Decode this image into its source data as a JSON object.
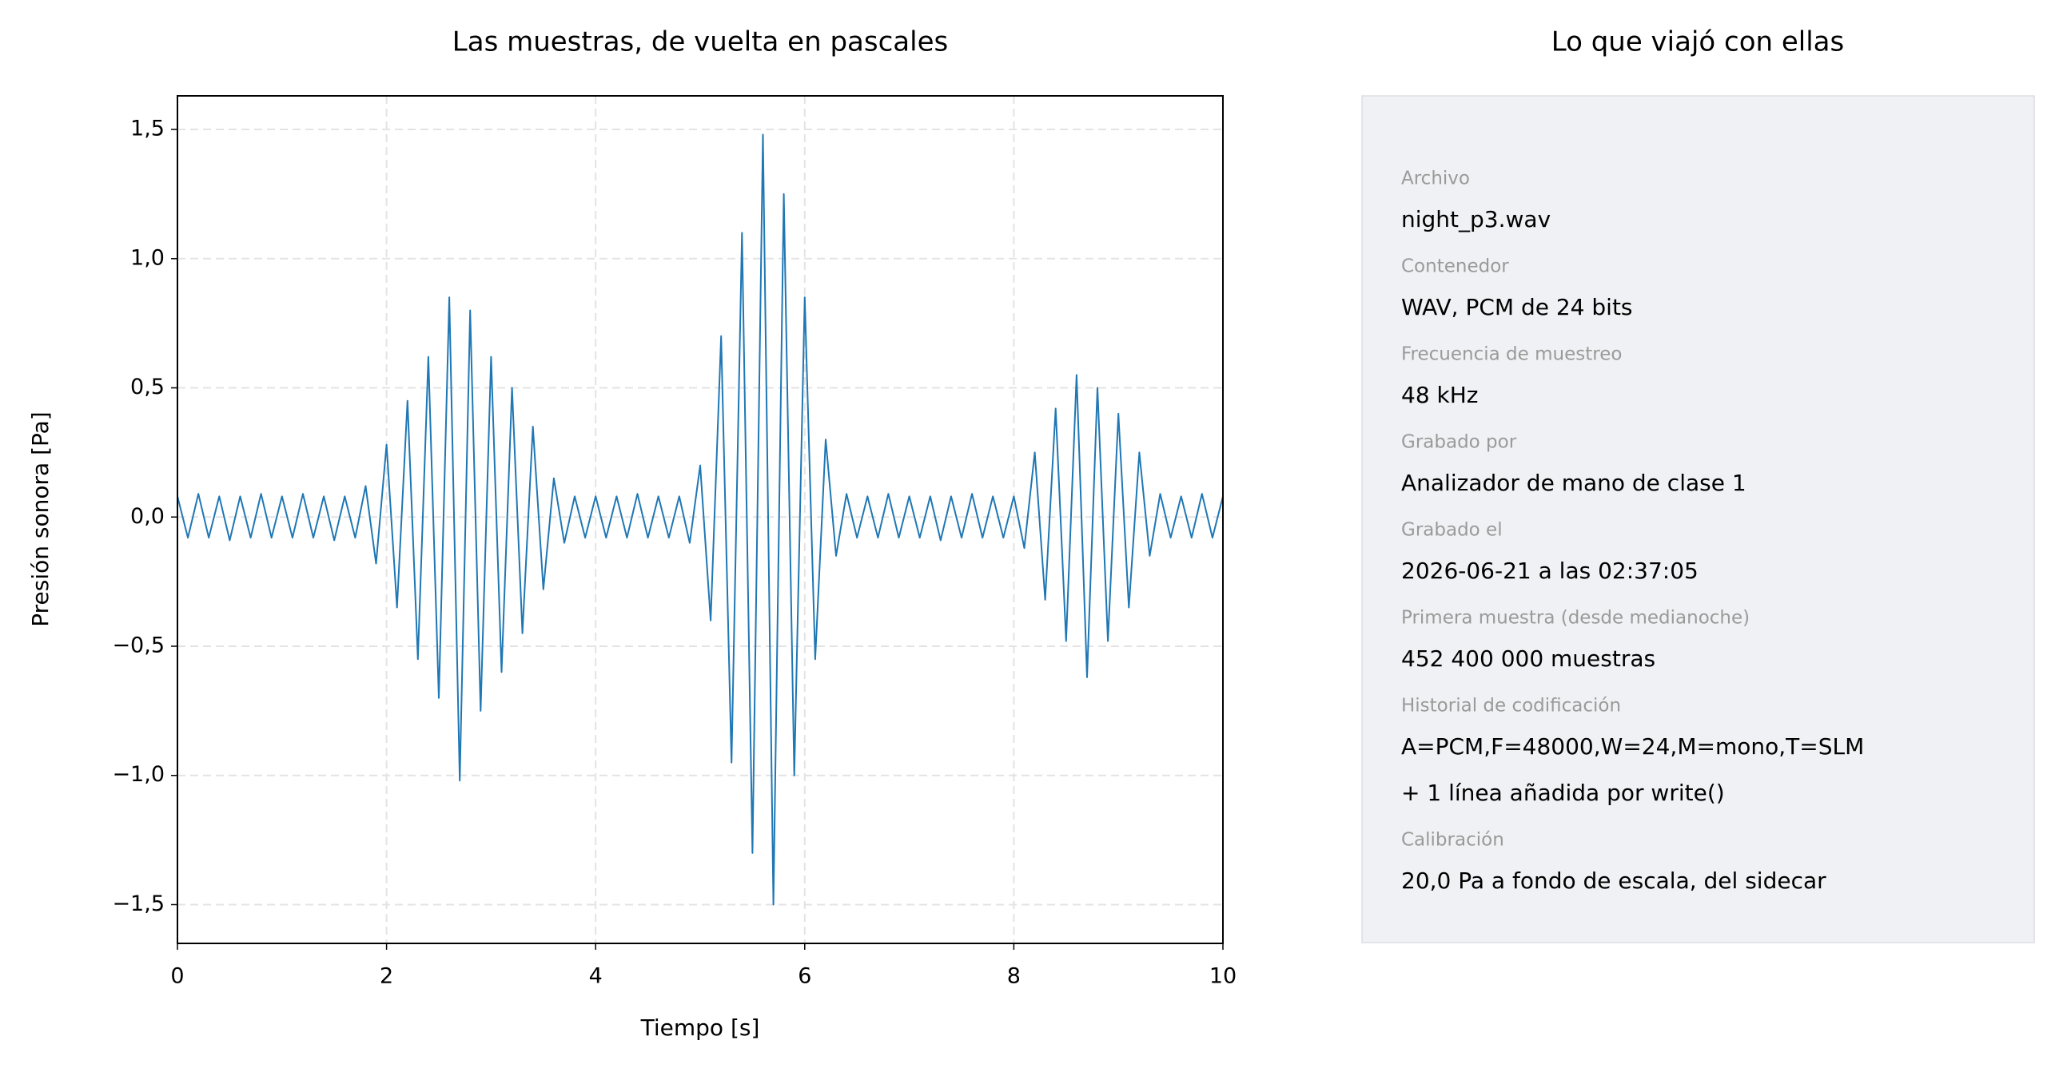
{
  "chart_data": {
    "type": "line",
    "title": "Las muestras, de vuelta en pascales",
    "xlabel": "Tiempo [s]",
    "ylabel": "Presión sonora [Pa]",
    "color": "#1f77b4",
    "grid": true,
    "xlim": [
      0,
      10
    ],
    "ylim": [
      -1.65,
      1.63
    ],
    "xticks": [
      0,
      2,
      4,
      6,
      8,
      10
    ],
    "yticks": [
      {
        "value": -1.5,
        "label": "−1,5"
      },
      {
        "value": -1.0,
        "label": "−1,0"
      },
      {
        "value": -0.5,
        "label": "−0,5"
      },
      {
        "value": 0,
        "label": "0,0"
      },
      {
        "value": 0.5,
        "label": "0,5"
      },
      {
        "value": 1.0,
        "label": "1,0"
      },
      {
        "value": 1.5,
        "label": "1,5"
      }
    ],
    "x": [
      0,
      0.1,
      0.2,
      0.3,
      0.4,
      0.5,
      0.6,
      0.7,
      0.8,
      0.9,
      1,
      1.1,
      1.2,
      1.3,
      1.4,
      1.5,
      1.6,
      1.7,
      1.8,
      1.9,
      2,
      2.1,
      2.2,
      2.3,
      2.4,
      2.5,
      2.6,
      2.7,
      2.8,
      2.9,
      3,
      3.1,
      3.2,
      3.3,
      3.4,
      3.5,
      3.6,
      3.7,
      3.8,
      3.9,
      4,
      4.1,
      4.2,
      4.3,
      4.4,
      4.5,
      4.6,
      4.7,
      4.8,
      4.9,
      5,
      5.1,
      5.2,
      5.3,
      5.4,
      5.5,
      5.6,
      5.7,
      5.8,
      5.9,
      6,
      6.1,
      6.2,
      6.3,
      6.4,
      6.5,
      6.6,
      6.7,
      6.8,
      6.9,
      7,
      7.1,
      7.2,
      7.3,
      7.4,
      7.5,
      7.6,
      7.7,
      7.8,
      7.9,
      8,
      8.1,
      8.2,
      8.3,
      8.4,
      8.5,
      8.6,
      8.7,
      8.8,
      8.9,
      9,
      9.1,
      9.2,
      9.3,
      9.4,
      9.5,
      9.6,
      9.7,
      9.8,
      9.9,
      10
    ],
    "values": [
      0.08,
      -0.08,
      0.09,
      -0.08,
      0.08,
      -0.09,
      0.08,
      -0.08,
      0.09,
      -0.08,
      0.08,
      -0.08,
      0.09,
      -0.08,
      0.08,
      -0.09,
      0.08,
      -0.08,
      0.12,
      -0.18,
      0.28,
      -0.35,
      0.45,
      -0.55,
      0.62,
      -0.7,
      0.85,
      -1.02,
      0.8,
      -0.75,
      0.62,
      -0.6,
      0.5,
      -0.45,
      0.35,
      -0.28,
      0.15,
      -0.1,
      0.08,
      -0.08,
      0.08,
      -0.08,
      0.08,
      -0.08,
      0.09,
      -0.08,
      0.08,
      -0.08,
      0.08,
      -0.1,
      0.2,
      -0.4,
      0.7,
      -0.95,
      1.1,
      -1.3,
      1.48,
      -1.5,
      1.25,
      -1.0,
      0.85,
      -0.55,
      0.3,
      -0.15,
      0.09,
      -0.08,
      0.08,
      -0.08,
      0.09,
      -0.08,
      0.08,
      -0.08,
      0.08,
      -0.09,
      0.08,
      -0.08,
      0.09,
      -0.08,
      0.08,
      -0.08,
      0.08,
      -0.12,
      0.25,
      -0.32,
      0.42,
      -0.48,
      0.55,
      -0.62,
      0.5,
      -0.48,
      0.4,
      -0.35,
      0.25,
      -0.15,
      0.09,
      -0.08,
      0.08,
      -0.08,
      0.09,
      -0.08,
      0.08
    ]
  },
  "info": {
    "title": "Lo que viajó con ellas",
    "items": [
      {
        "label": "Archivo",
        "lines": [
          "night_p3.wav"
        ]
      },
      {
        "label": "Contenedor",
        "lines": [
          "WAV, PCM de 24 bits"
        ]
      },
      {
        "label": "Frecuencia de muestreo",
        "lines": [
          "48 kHz"
        ]
      },
      {
        "label": "Grabado por",
        "lines": [
          "Analizador de mano de clase 1"
        ]
      },
      {
        "label": "Grabado el",
        "lines": [
          "2026-06-21 a las 02:37:05"
        ]
      },
      {
        "label": "Primera muestra (desde medianoche)",
        "lines": [
          "452 400 000 muestras"
        ]
      },
      {
        "label": "Historial de codificación",
        "lines": [
          "A=PCM,F=48000,W=24,M=mono,T=SLM",
          "+ 1 línea añadida por write()"
        ]
      },
      {
        "label": "Calibración",
        "lines": [
          "20,0 Pa a fondo de escala, del sidecar"
        ]
      }
    ]
  }
}
